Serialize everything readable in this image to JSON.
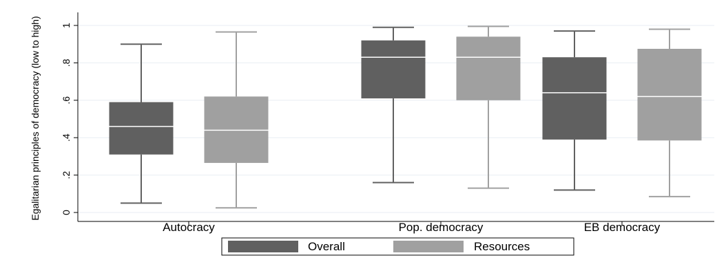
{
  "chart_data": {
    "type": "boxplot",
    "ylabel": "Egalitarian principles of democracy (low to high)",
    "xlabel": "",
    "ylim": [
      0,
      1
    ],
    "yticks": [
      {
        "value": 0,
        "label": "0"
      },
      {
        "value": 0.2,
        "label": ".2"
      },
      {
        "value": 0.4,
        "label": ".4"
      },
      {
        "value": 0.6,
        "label": ".6"
      },
      {
        "value": 0.8,
        "label": ".8"
      },
      {
        "value": 1,
        "label": "1"
      }
    ],
    "grid": true,
    "legend_position": "bottom",
    "categories": [
      "Autocracy",
      "Pop. democracy",
      "EB democracy"
    ],
    "series": [
      {
        "name": "Overall",
        "color": "#606060",
        "median_color": "#ffffff",
        "boxes": [
          {
            "min": 0.05,
            "q1": 0.31,
            "median": 0.46,
            "q3": 0.59,
            "max": 0.9
          },
          {
            "min": 0.16,
            "q1": 0.61,
            "median": 0.83,
            "q3": 0.92,
            "max": 0.99
          },
          {
            "min": 0.12,
            "q1": 0.39,
            "median": 0.64,
            "q3": 0.83,
            "max": 0.97
          }
        ]
      },
      {
        "name": "Resources",
        "color": "#a0a0a0",
        "median_color": "#ffffff",
        "boxes": [
          {
            "min": 0.025,
            "q1": 0.265,
            "median": 0.44,
            "q3": 0.62,
            "max": 0.965
          },
          {
            "min": 0.13,
            "q1": 0.6,
            "median": 0.83,
            "q3": 0.94,
            "max": 0.995
          },
          {
            "min": 0.085,
            "q1": 0.385,
            "median": 0.62,
            "q3": 0.875,
            "max": 0.98
          }
        ]
      }
    ]
  }
}
